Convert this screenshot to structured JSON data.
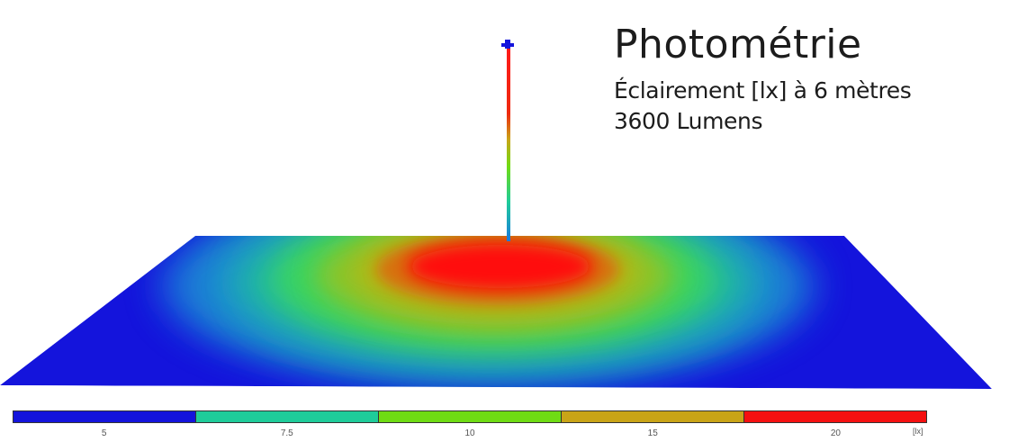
{
  "header": {
    "title": "Photométrie",
    "subtitle": "Éclairement [lx] à 6 mètres",
    "lumens": "3600 Lumens"
  },
  "chart_data": {
    "type": "heatmap",
    "title": "Photométrie",
    "subtitle": "Éclairement [lx] à 6 mètres",
    "note": "3600 Lumens",
    "unit": "[lx]",
    "legend": {
      "placement": "bottom",
      "classes": [
        {
          "label": "5",
          "value": 5,
          "color": "#1414dc"
        },
        {
          "label": "7.5",
          "value": 7.5,
          "color": "#1fcc9a"
        },
        {
          "label": "10",
          "value": 10,
          "color": "#6fdc14"
        },
        {
          "label": "15",
          "value": 15,
          "color": "#c9a417"
        },
        {
          "label": "20",
          "value": 20,
          "color": "#f51010"
        }
      ]
    },
    "contour_levels": [
      {
        "value": 5,
        "color": "#1414dc"
      },
      {
        "value": 7.5,
        "color": "#1fcc9a"
      },
      {
        "value": 10,
        "color": "#6fdc14"
      },
      {
        "value": 15,
        "color": "#c9a417"
      },
      {
        "value": 20,
        "color": "#f51010"
      }
    ]
  }
}
